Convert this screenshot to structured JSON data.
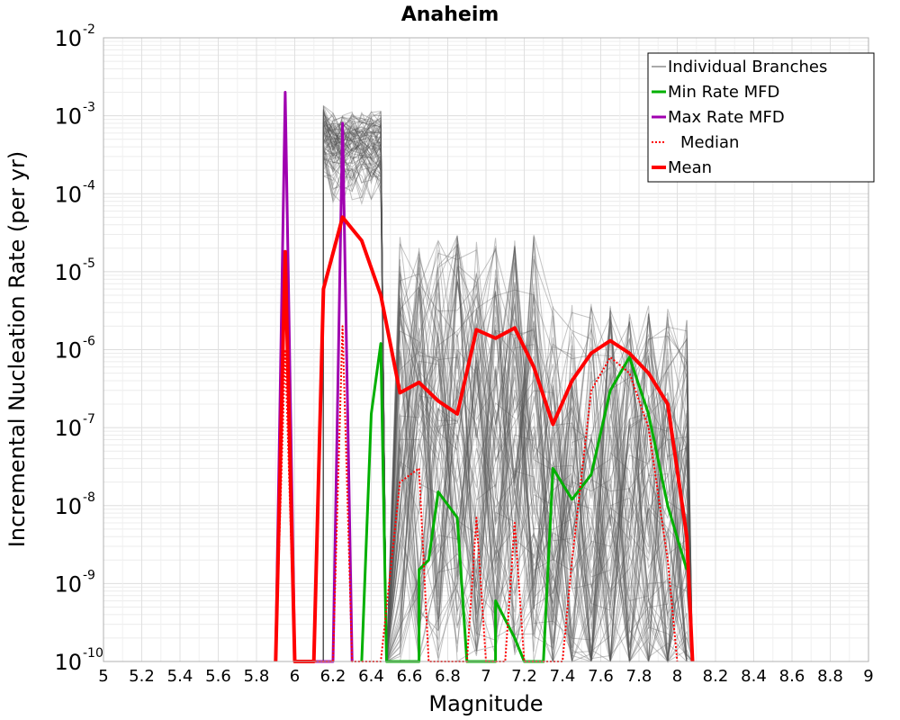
{
  "chart_data": {
    "type": "line",
    "title": "Anaheim",
    "xlabel": "Magnitude",
    "ylabel": "Incremental Nucleation Rate (per yr)",
    "xlim": [
      5,
      9
    ],
    "ylim": [
      1e-10,
      0.01
    ],
    "yscale": "log",
    "grid": true,
    "legend_position": "top-right",
    "x_ticks": [
      "5",
      "5.2",
      "5.4",
      "5.6",
      "5.8",
      "6",
      "6.2",
      "6.4",
      "6.6",
      "6.8",
      "7",
      "7.2",
      "7.4",
      "7.6",
      "7.8",
      "8",
      "8.2",
      "8.4",
      "8.6",
      "8.8",
      "9"
    ],
    "y_ticks": [
      {
        "base": "10",
        "exp": "-10"
      },
      {
        "base": "10",
        "exp": "-9"
      },
      {
        "base": "10",
        "exp": "-8"
      },
      {
        "base": "10",
        "exp": "-7"
      },
      {
        "base": "10",
        "exp": "-6"
      },
      {
        "base": "10",
        "exp": "-5"
      },
      {
        "base": "10",
        "exp": "-4"
      },
      {
        "base": "10",
        "exp": "-3"
      },
      {
        "base": "10",
        "exp": "-2"
      }
    ],
    "series": [
      {
        "name": "Individual Branches",
        "color": "#555555",
        "style": "thin",
        "values": []
      },
      {
        "name": "Min Rate MFD",
        "color": "#00b000",
        "style": "solid",
        "points": [
          [
            6.35,
            1e-10
          ],
          [
            6.4,
            1.5e-07
          ],
          [
            6.45,
            1.2e-06
          ],
          [
            6.48,
            1e-10
          ],
          [
            6.65,
            1e-10
          ],
          [
            6.65,
            1.5e-09
          ],
          [
            6.7,
            2e-09
          ],
          [
            6.75,
            1.5e-08
          ],
          [
            6.85,
            7e-09
          ],
          [
            6.9,
            1e-10
          ],
          [
            7.05,
            1e-10
          ],
          [
            7.05,
            6e-10
          ],
          [
            7.15,
            2e-10
          ],
          [
            7.2,
            1e-10
          ],
          [
            7.3,
            1e-10
          ],
          [
            7.35,
            3e-08
          ],
          [
            7.45,
            1.2e-08
          ],
          [
            7.55,
            2.5e-08
          ],
          [
            7.65,
            3e-07
          ],
          [
            7.75,
            8e-07
          ],
          [
            7.85,
            1.5e-07
          ],
          [
            7.95,
            1e-08
          ],
          [
            8.05,
            1.5e-09
          ]
        ]
      },
      {
        "name": "Max Rate MFD",
        "color": "#a000b0",
        "style": "solid",
        "points": [
          [
            5.9,
            1e-10
          ],
          [
            5.95,
            0.002
          ],
          [
            6.0,
            1e-10
          ],
          [
            6.2,
            1e-10
          ],
          [
            6.25,
            0.0008
          ],
          [
            6.3,
            1e-10
          ]
        ]
      },
      {
        "name": "Median",
        "color": "#ff0000",
        "style": "dotted",
        "points": [
          [
            5.9,
            1e-10
          ],
          [
            5.95,
            1e-06
          ],
          [
            6.0,
            1e-10
          ],
          [
            6.2,
            1e-10
          ],
          [
            6.25,
            2e-06
          ],
          [
            6.3,
            1e-10
          ],
          [
            6.45,
            1e-10
          ],
          [
            6.55,
            2e-08
          ],
          [
            6.65,
            3e-08
          ],
          [
            6.7,
            1e-10
          ],
          [
            6.9,
            1e-10
          ],
          [
            6.95,
            7e-09
          ],
          [
            7.0,
            1e-10
          ],
          [
            7.1,
            1e-10
          ],
          [
            7.15,
            6e-09
          ],
          [
            7.2,
            1e-10
          ],
          [
            7.4,
            1e-10
          ],
          [
            7.45,
            2e-09
          ],
          [
            7.55,
            3e-07
          ],
          [
            7.65,
            8e-07
          ],
          [
            7.75,
            5e-07
          ],
          [
            7.85,
            1e-07
          ],
          [
            7.95,
            2e-09
          ],
          [
            8.0,
            1e-10
          ]
        ]
      },
      {
        "name": "Mean",
        "color": "#ff0000",
        "style": "thick",
        "points": [
          [
            5.9,
            1e-10
          ],
          [
            5.95,
            1.8e-05
          ],
          [
            6.0,
            1e-10
          ],
          [
            6.1,
            1e-10
          ],
          [
            6.15,
            6e-06
          ],
          [
            6.25,
            5e-05
          ],
          [
            6.35,
            2.5e-05
          ],
          [
            6.45,
            5e-06
          ],
          [
            6.55,
            2.8e-07
          ],
          [
            6.65,
            3.8e-07
          ],
          [
            6.75,
            2.2e-07
          ],
          [
            6.85,
            1.5e-07
          ],
          [
            6.95,
            1.8e-06
          ],
          [
            7.05,
            1.4e-06
          ],
          [
            7.15,
            1.9e-06
          ],
          [
            7.25,
            6e-07
          ],
          [
            7.35,
            1.1e-07
          ],
          [
            7.45,
            4e-07
          ],
          [
            7.55,
            9e-07
          ],
          [
            7.65,
            1.3e-06
          ],
          [
            7.75,
            9e-07
          ],
          [
            7.85,
            5e-07
          ],
          [
            7.95,
            2e-07
          ],
          [
            8.05,
            4e-09
          ],
          [
            8.08,
            1e-10
          ]
        ]
      }
    ]
  }
}
